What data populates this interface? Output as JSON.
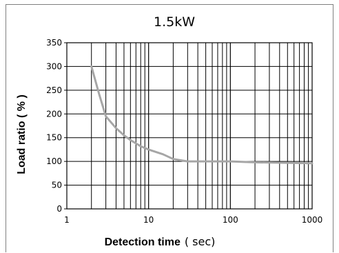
{
  "chart_data": {
    "type": "line",
    "title": "1.5kW",
    "xlabel": "Detection time",
    "xlabel_unit": "( sec)",
    "ylabel": "Load ratio ( % )",
    "x_scale": "log",
    "xlim": [
      1,
      1000
    ],
    "ylim": [
      0,
      350
    ],
    "x_ticks": [
      "1",
      "10",
      "100",
      "1000"
    ],
    "y_ticks": [
      "0",
      "50",
      "100",
      "150",
      "200",
      "250",
      "300",
      "350"
    ],
    "grid": true,
    "series": [
      {
        "color": "#a6a6a6",
        "x": [
          2,
          2.5,
          3,
          4,
          5,
          6,
          8,
          10,
          15,
          20,
          30,
          50,
          100,
          200,
          500,
          1000
        ],
        "y": [
          300,
          240,
          195,
          170,
          155,
          145,
          132,
          125,
          115,
          105,
          100,
          100,
          100,
          98,
          97,
          96
        ]
      }
    ]
  }
}
